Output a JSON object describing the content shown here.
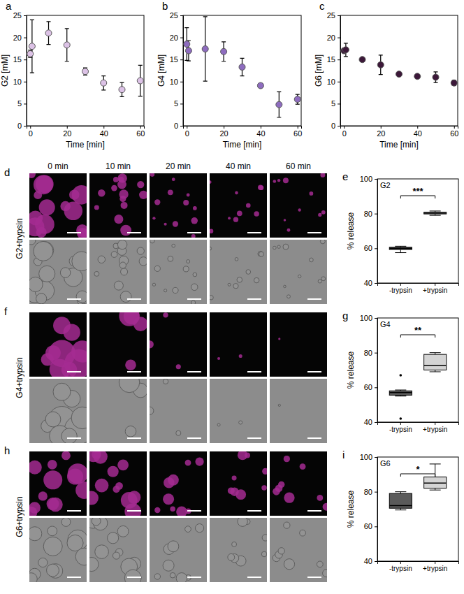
{
  "chart_data": [
    {
      "type": "scatter",
      "panel_label": "a",
      "xlabel": "Time [min]",
      "ylabel": "G2 [mM]",
      "xlim": [
        -2,
        62
      ],
      "xticks": [
        0,
        20,
        40,
        60
      ],
      "ylim": [
        0,
        25
      ],
      "yticks": [
        0,
        5,
        10,
        15,
        20,
        25
      ],
      "marker": "circle",
      "x": [
        0,
        1,
        10,
        20,
        30,
        40,
        50,
        60
      ],
      "series": [
        {
          "color": "#dcc2e6",
          "values": [
            16.3,
            18.0,
            21.0,
            18.3,
            12.3,
            9.7,
            8.2,
            10.2
          ],
          "errors": [
            0.8,
            6.0,
            2.6,
            3.7,
            0.8,
            1.6,
            1.6,
            3.5
          ]
        }
      ]
    },
    {
      "type": "scatter",
      "panel_label": "b",
      "xlabel": "Time [min]",
      "ylabel": "G4 [mM]",
      "xlim": [
        -2,
        62
      ],
      "xticks": [
        0,
        20,
        40,
        60
      ],
      "ylim": [
        0,
        25
      ],
      "yticks": [
        0,
        5,
        10,
        15,
        20,
        25
      ],
      "marker": "circle",
      "x": [
        0,
        1,
        10,
        20,
        30,
        40,
        50,
        60
      ],
      "series": [
        {
          "color": "#8e6cbf",
          "values": [
            18.5,
            17.0,
            17.4,
            16.8,
            13.3,
            9.1,
            4.8,
            6.0
          ],
          "errors": [
            3.7,
            2.3,
            7.3,
            2.2,
            2.0,
            0.4,
            2.9,
            1.1
          ]
        }
      ]
    },
    {
      "type": "scatter",
      "panel_label": "c",
      "xlabel": "Time [min]",
      "ylabel": "G6 [mM]",
      "xlim": [
        -2,
        62
      ],
      "xticks": [
        0,
        20,
        40,
        60
      ],
      "ylim": [
        0,
        25
      ],
      "yticks": [
        0,
        5,
        10,
        15,
        20,
        25
      ],
      "marker": "circle",
      "x": [
        0,
        1,
        10,
        20,
        30,
        40,
        50,
        60
      ],
      "series": [
        {
          "color": "#3c1839",
          "values": [
            17.0,
            17.2,
            15.0,
            13.8,
            11.7,
            11.2,
            11.0,
            9.7
          ],
          "errors": [
            0.5,
            1.5,
            0.4,
            2.2,
            0.4,
            0.4,
            1.2,
            0.6
          ]
        }
      ]
    },
    {
      "type": "box",
      "panel_label": "e",
      "label": "G2",
      "annotation": "***",
      "ylabel": "% release",
      "ylim": [
        40,
        100
      ],
      "yticks": [
        40,
        60,
        80,
        100
      ],
      "categories": [
        "-trypsin",
        "+trypsin"
      ],
      "colors": [
        "#5a5a5a",
        "#d4d4d4"
      ],
      "boxes": [
        {
          "min": 57.5,
          "q1": 59.3,
          "median": 60.0,
          "q3": 60.6,
          "max": 61.2,
          "outliers": []
        },
        {
          "min": 79.0,
          "q1": 79.8,
          "median": 80.3,
          "q3": 80.8,
          "max": 81.5,
          "outliers": []
        }
      ]
    },
    {
      "type": "box",
      "panel_label": "g",
      "label": "G4",
      "annotation": "**",
      "ylabel": "% release",
      "ylim": [
        40,
        100
      ],
      "yticks": [
        40,
        60,
        80,
        100
      ],
      "categories": [
        "-trypsin",
        "+trypsin"
      ],
      "colors": [
        "#5a5a5a",
        "#d4d4d4"
      ],
      "boxes": [
        {
          "min": 55.0,
          "q1": 55.5,
          "median": 57.0,
          "q3": 58.0,
          "max": 58.5,
          "outliers": [
            42.0,
            67.0
          ]
        },
        {
          "min": 69.0,
          "q1": 70.0,
          "median": 72.5,
          "q3": 79.0,
          "max": 80.0,
          "outliers": []
        }
      ]
    },
    {
      "type": "box",
      "panel_label": "i",
      "label": "G6",
      "annotation": "*",
      "ylabel": "% release",
      "ylim": [
        40,
        100
      ],
      "yticks": [
        40,
        60,
        80,
        100
      ],
      "categories": [
        "-trypsin",
        "+trypsin"
      ],
      "colors": [
        "#5a5a5a",
        "#d4d4d4"
      ],
      "boxes": [
        {
          "min": 69.5,
          "q1": 70.5,
          "median": 72.0,
          "q3": 79.0,
          "max": 80.0,
          "outliers": []
        },
        {
          "min": 81.0,
          "q1": 82.0,
          "median": 85.0,
          "q3": 88.5,
          "max": 96.0,
          "outliers": []
        }
      ]
    }
  ],
  "micrographs": {
    "times": [
      "0 min",
      "10 min",
      "20 min",
      "40 min",
      "60 min"
    ],
    "rows": [
      {
        "panel_label": "d",
        "label": "G2+trypsin"
      },
      {
        "panel_label": "f",
        "label": "G4+trypsin"
      },
      {
        "panel_label": "h",
        "label": "G6+trypsin"
      }
    ]
  }
}
